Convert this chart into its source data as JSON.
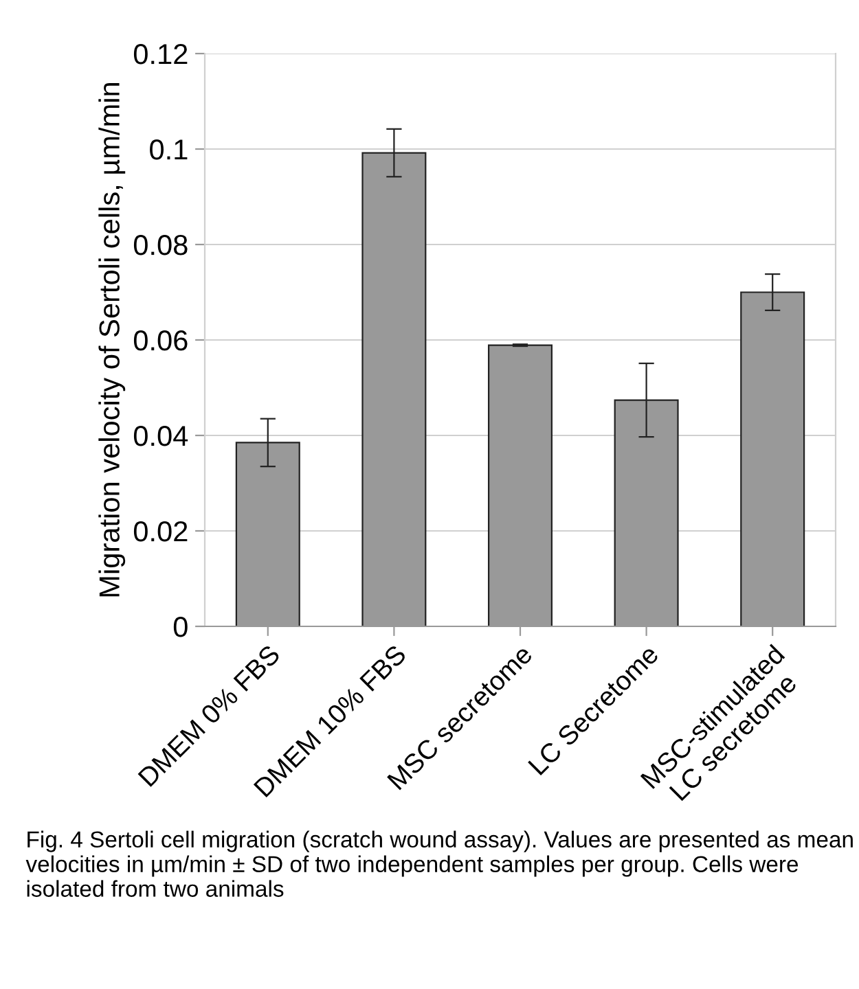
{
  "chart_data": {
    "type": "bar",
    "ylabel": "Migration velocity of Sertoli cells, µm/min",
    "categories": [
      "DMEM 0% FBS",
      "DMEM 10% FBS",
      "MSC secretome",
      "LC Secretome",
      "MSC-stimulated\nLC secretome"
    ],
    "values": [
      0.0385,
      0.0992,
      0.0589,
      0.0474,
      0.07
    ],
    "errors": [
      0.005,
      0.005,
      0.0002,
      0.0077,
      0.0038
    ],
    "color": "#999999",
    "ylim": [
      0,
      0.12
    ],
    "yticks": [
      0,
      0.02,
      0.04,
      0.06,
      0.08,
      {
        "value": 0.1,
        "label": "0.1"
      },
      0.12
    ],
    "grid": "y",
    "annotations": [
      "Fig. 4 Sertoli cell migration (scratch wound assay). Values are presented as mean velocities in µm/min ± SD of two independent samples per group. Cells were isolated from two animals"
    ]
  }
}
